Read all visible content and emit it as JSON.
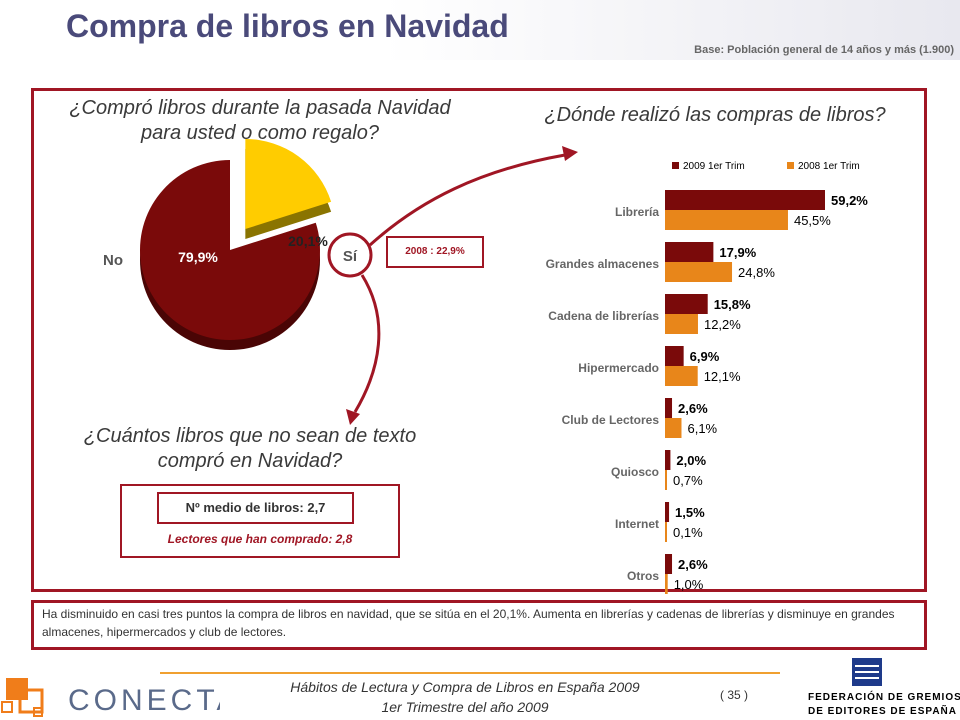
{
  "header": {
    "title": "Compra de libros en Navidad",
    "base_note": "Base: Población general de 14 años y más (1.900)"
  },
  "questions": {
    "q1": "¿Compró libros durante la pasada Navidad para usted o como regalo?",
    "q2": "¿Dónde realizó las compras de libros?",
    "q3": "¿Cuántos libros que no sean de texto compró en Navidad?"
  },
  "mean_books": {
    "value_label": "Nº medio de libros: 2,7",
    "readers_label": "Lectores que han comprado: 2,8"
  },
  "prev_year_badge": "2008 : 22,9%",
  "summary": "Ha disminuido en casi tres puntos la compra de libros en navidad, que se sitúa en el 20,1%. Aumenta en librerías y cadenas de librerías y disminuye en grandes almacenes, hipermercados y club de lectores.",
  "footer": {
    "line1": "Hábitos de Lectura y Compra de Libros en España 2009",
    "line2": "1er Trimestre del año 2009",
    "page": "( 35 )",
    "conecta_logo": "CONECTA",
    "federation_line1": "FEDERACIÓN DE GREMIOS",
    "federation_line2": "DE EDITORES DE ESPAÑA"
  },
  "colors": {
    "maroon": "#7a0a0a",
    "orange": "#e8861a",
    "yellow": "#ffcc00",
    "accent": "#a01624",
    "title": "#4a4a7a"
  },
  "chart_data": [
    {
      "type": "pie",
      "labels": [
        "No",
        "Sí"
      ],
      "values": [
        79.9,
        20.1
      ],
      "value_labels": [
        "79,9%",
        "20,1%"
      ]
    },
    {
      "type": "bar",
      "orientation": "horizontal",
      "categories": [
        "Librería",
        "Grandes almacenes",
        "Cadena de librerías",
        "Hipermercado",
        "Club de Lectores",
        "Quiosco",
        "Internet",
        "Otros"
      ],
      "series": [
        {
          "name": "2009 1er Trim",
          "values": [
            59.2,
            17.9,
            15.8,
            6.9,
            2.6,
            2.0,
            1.5,
            2.6
          ],
          "labels": [
            "59,2%",
            "17,9%",
            "15,8%",
            "6,9%",
            "2,6%",
            "2,0%",
            "1,5%",
            "2,6%"
          ]
        },
        {
          "name": "2008 1er Trim",
          "values": [
            45.5,
            24.8,
            12.2,
            12.1,
            6.1,
            0.7,
            0.1,
            1.0
          ],
          "labels": [
            "45,5%",
            "24,8%",
            "12,2%",
            "12,1%",
            "6,1%",
            "0,7%",
            "0,1%",
            "1,0%"
          ]
        }
      ],
      "legend_position": "top"
    }
  ]
}
